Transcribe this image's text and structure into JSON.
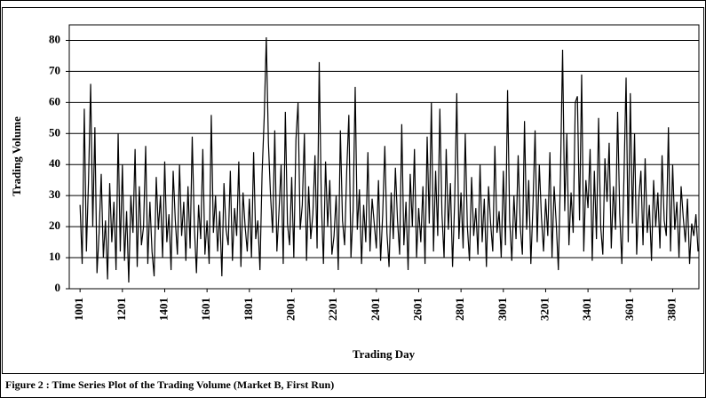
{
  "chart_data": {
    "type": "line",
    "caption": "Figure 2 : Time Series Plot of the Trading Volume (Market B, First Run)",
    "x_label": "Trading Day",
    "y_label": "Trading Volume",
    "xlim": [
      950,
      3925
    ],
    "ylim": [
      0,
      85
    ],
    "xticks": [
      1001,
      1201,
      1401,
      1601,
      1801,
      2001,
      2201,
      2401,
      2601,
      2801,
      3001,
      3201,
      3401,
      3601,
      3801
    ],
    "yticks": [
      0,
      10,
      20,
      30,
      40,
      50,
      60,
      70,
      80
    ],
    "grid": true,
    "color": "#000000",
    "x": [
      1001,
      1011,
      1021,
      1031,
      1041,
      1051,
      1061,
      1071,
      1081,
      1091,
      1101,
      1111,
      1121,
      1131,
      1141,
      1151,
      1161,
      1171,
      1181,
      1191,
      1201,
      1211,
      1221,
      1231,
      1241,
      1251,
      1261,
      1271,
      1281,
      1291,
      1301,
      1311,
      1321,
      1331,
      1341,
      1351,
      1361,
      1371,
      1381,
      1391,
      1401,
      1411,
      1421,
      1431,
      1441,
      1451,
      1461,
      1471,
      1481,
      1491,
      1501,
      1511,
      1521,
      1531,
      1541,
      1551,
      1561,
      1571,
      1581,
      1591,
      1601,
      1611,
      1621,
      1631,
      1641,
      1651,
      1661,
      1671,
      1681,
      1691,
      1701,
      1711,
      1721,
      1731,
      1741,
      1751,
      1761,
      1771,
      1781,
      1791,
      1801,
      1811,
      1821,
      1831,
      1841,
      1851,
      1861,
      1871,
      1881,
      1891,
      1901,
      1911,
      1921,
      1931,
      1941,
      1951,
      1961,
      1971,
      1981,
      1991,
      2001,
      2011,
      2021,
      2031,
      2041,
      2051,
      2061,
      2071,
      2081,
      2091,
      2101,
      2111,
      2121,
      2131,
      2141,
      2151,
      2161,
      2171,
      2181,
      2191,
      2201,
      2211,
      2221,
      2231,
      2241,
      2251,
      2261,
      2271,
      2281,
      2291,
      2301,
      2311,
      2321,
      2331,
      2341,
      2351,
      2361,
      2371,
      2381,
      2391,
      2401,
      2411,
      2421,
      2431,
      2441,
      2451,
      2461,
      2471,
      2481,
      2491,
      2501,
      2511,
      2521,
      2531,
      2541,
      2551,
      2561,
      2571,
      2581,
      2591,
      2601,
      2611,
      2621,
      2631,
      2641,
      2651,
      2661,
      2671,
      2681,
      2691,
      2701,
      2711,
      2721,
      2731,
      2741,
      2751,
      2761,
      2771,
      2781,
      2791,
      2801,
      2811,
      2821,
      2831,
      2841,
      2851,
      2861,
      2871,
      2881,
      2891,
      2901,
      2911,
      2921,
      2931,
      2941,
      2951,
      2961,
      2971,
      2981,
      2991,
      3001,
      3011,
      3021,
      3031,
      3041,
      3051,
      3061,
      3071,
      3081,
      3091,
      3101,
      3111,
      3121,
      3131,
      3141,
      3151,
      3161,
      3171,
      3181,
      3191,
      3201,
      3211,
      3221,
      3231,
      3241,
      3251,
      3261,
      3271,
      3281,
      3291,
      3301,
      3311,
      3321,
      3331,
      3341,
      3351,
      3361,
      3371,
      3381,
      3391,
      3401,
      3411,
      3421,
      3431,
      3441,
      3451,
      3461,
      3471,
      3481,
      3491,
      3501,
      3511,
      3521,
      3531,
      3541,
      3551,
      3561,
      3571,
      3581,
      3591,
      3601,
      3611,
      3621,
      3631,
      3641,
      3651,
      3661,
      3671,
      3681,
      3691,
      3701,
      3711,
      3721,
      3731,
      3741,
      3751,
      3761,
      3771,
      3781,
      3791,
      3801,
      3811,
      3821,
      3831,
      3841,
      3851,
      3861,
      3871,
      3881,
      3891,
      3901,
      3911,
      3921
    ],
    "values": [
      27,
      8,
      58,
      12,
      35,
      66,
      20,
      52,
      5,
      18,
      37,
      10,
      22,
      3,
      34,
      15,
      28,
      6,
      50,
      12,
      40,
      9,
      25,
      2,
      30,
      18,
      45,
      7,
      33,
      14,
      20,
      46,
      8,
      28,
      12,
      4,
      36,
      19,
      30,
      10,
      41,
      15,
      24,
      6,
      38,
      22,
      11,
      40,
      17,
      28,
      9,
      33,
      13,
      49,
      20,
      5,
      27,
      16,
      45,
      11,
      22,
      8,
      56,
      18,
      30,
      12,
      25,
      4,
      34,
      19,
      14,
      38,
      9,
      26,
      17,
      41,
      7,
      31,
      20,
      12,
      29,
      10,
      44,
      16,
      22,
      6,
      37,
      55,
      81,
      47,
      30,
      18,
      51,
      12,
      25,
      40,
      8,
      57,
      21,
      14,
      36,
      10,
      48,
      60,
      19,
      27,
      50,
      9,
      33,
      16,
      24,
      43,
      13,
      73,
      28,
      8,
      41,
      20,
      35,
      11,
      17,
      30,
      6,
      51,
      22,
      14,
      38,
      56,
      10,
      25,
      65,
      19,
      32,
      8,
      27,
      15,
      44,
      12,
      29,
      21,
      13,
      35,
      9,
      24,
      46,
      18,
      7,
      31,
      16,
      39,
      22,
      11,
      53,
      14,
      28,
      6,
      37,
      20,
      45,
      10,
      26,
      15,
      33,
      8,
      49,
      21,
      60,
      12,
      38,
      17,
      58,
      24,
      10,
      45,
      19,
      34,
      7,
      28,
      63,
      16,
      31,
      13,
      50,
      20,
      9,
      36,
      17,
      26,
      11,
      40,
      15,
      29,
      7,
      33,
      21,
      12,
      46,
      18,
      25,
      10,
      38,
      14,
      64,
      22,
      9,
      30,
      16,
      43,
      20,
      11,
      54,
      19,
      35,
      8,
      27,
      51,
      15,
      40,
      23,
      12,
      29,
      17,
      44,
      10,
      33,
      21,
      6,
      37,
      77,
      25,
      50,
      14,
      31,
      18,
      60,
      62,
      22,
      69,
      12,
      35,
      26,
      45,
      9,
      38,
      16,
      55,
      20,
      11,
      42,
      28,
      47,
      13,
      33,
      19,
      57,
      24,
      8,
      36,
      68,
      15,
      63,
      21,
      50,
      11,
      29,
      38,
      14,
      42,
      18,
      27,
      9,
      35,
      20,
      31,
      13,
      43,
      22,
      17,
      52,
      12,
      40,
      19,
      28,
      10,
      33,
      23,
      15,
      29,
      8,
      21,
      17,
      24,
      12
    ]
  }
}
